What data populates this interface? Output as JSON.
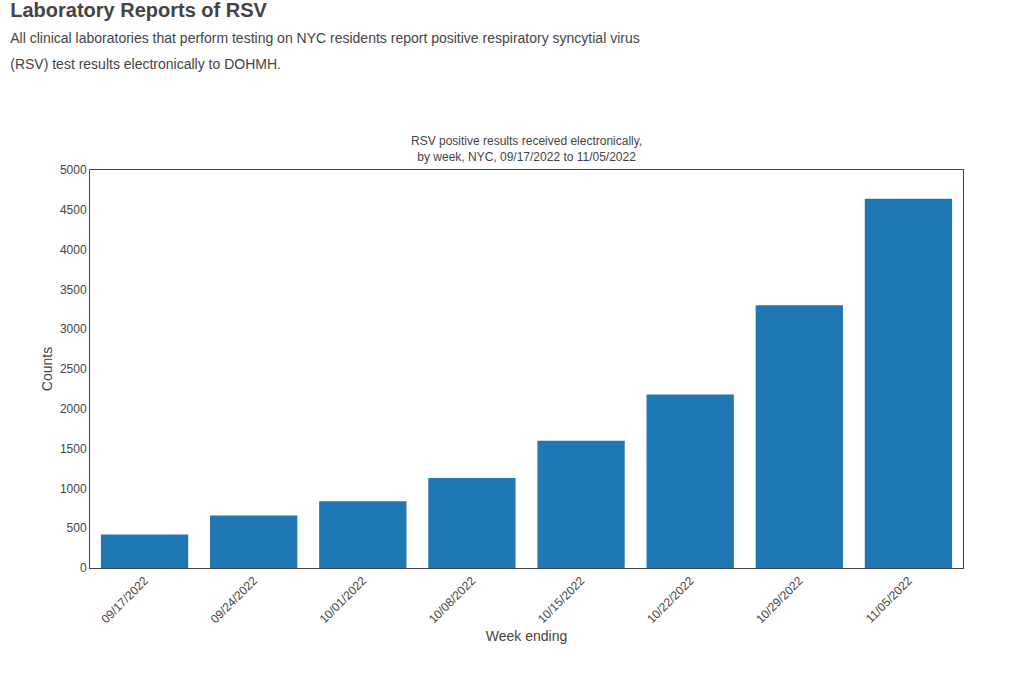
{
  "chart_data": {
    "type": "bar",
    "title": "Laboratory Reports of RSV",
    "subtitle": "All clinical laboratories that perform testing on NYC residents report positive respiratory syncytial virus\n(RSV) test results electronically to DOHMH.",
    "annotations": [
      "RSV positive results received electronically,\nby week, NYC, 09/17/2022 to 11/05/2022"
    ],
    "xlabel": "Week ending",
    "ylabel": "Counts",
    "categories": [
      "09/17/2022",
      "09/24/2022",
      "10/01/2022",
      "10/08/2022",
      "10/15/2022",
      "10/22/2022",
      "10/29/2022",
      "11/05/2022"
    ],
    "values": [
      420,
      660,
      840,
      1130,
      1600,
      2180,
      3300,
      4640
    ],
    "ylim": [
      0,
      5000
    ],
    "yticks": [
      0,
      500,
      1000,
      1500,
      2000,
      2500,
      3000,
      3500,
      4000,
      4500,
      5000
    ],
    "grid": false
  }
}
